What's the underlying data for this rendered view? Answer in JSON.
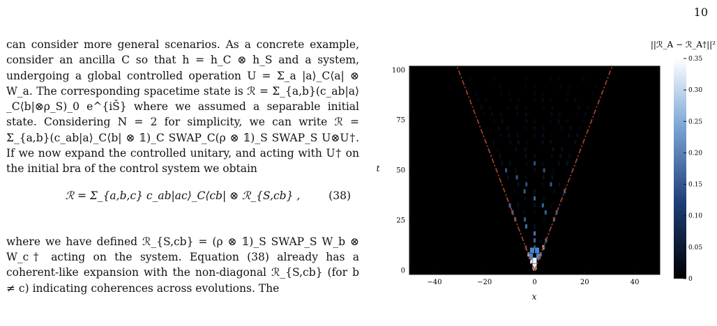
{
  "page_number": "10",
  "paragraph1": "can consider more general scenarios. As a concrete example, consider an ancilla C so that h = h_C ⊗ h_S and a system, undergoing a global controlled operation U = Σ_a |a⟩_C⟨a| ⊗ W_a. The corresponding spacetime state is ℛ = Σ_{a,b}(c_ab|a⟩_C⟨b|⊗ρ_S)_0 e^{iŠ} where we assumed a separable initial state. Considering N = 2 for simplicity, we can write ℛ = Σ_{a,b}(c_ab|a⟩_C⟨b| ⊗ 𝟙)_C SWAP_C(ρ ⊗ 𝟙)_S SWAP_S U⊗U†. If we now expand the controlled unitary, and acting with U† on the initial bra of the control system we obtain",
  "equation": "ℛ = Σ_{a,b,c} c_ab|ac⟩_C⟨cb| ⊗ ℛ_{S,cb} ,",
  "equation_number": "(38)",
  "paragraph2": "where we have defined ℛ_{S,cb} = (ρ ⊗ 𝟙)_S SWAP_S W_b ⊗ W_c† acting on the system. Equation (38) already has a coherent-like expansion with the non-diagonal ℛ_{S,cb} (for b ≠ c) indicating coherences across evolutions. The",
  "figure": {
    "colorbar_title": "||ℛ_A − ℛ_A†||²",
    "colors": {
      "background": "#000000",
      "light_cone": "#b0442a",
      "bright": "#e8f2ff",
      "mid": "#4a86cc",
      "dark": "#0b1c3a"
    },
    "chart_data": {
      "type": "heatmap",
      "xlabel": "x",
      "ylabel": "t",
      "xlim": [
        -50,
        50
      ],
      "ylim": [
        -2,
        102
      ],
      "xticks": [
        -40,
        -20,
        0,
        20,
        40
      ],
      "yticks": [
        0,
        25,
        50,
        75,
        100
      ],
      "colorbar": {
        "range": [
          0,
          0.35
        ],
        "ticks": [
          0,
          0.05,
          0.1,
          0.15,
          0.2,
          0.25,
          0.3,
          0.35
        ],
        "colormap": "black-blue-white"
      },
      "light_cone": {
        "style": "dash-dot",
        "apex": [
          0,
          0
        ],
        "edges": [
          [
            -31,
            102
          ],
          [
            31,
            102
          ]
        ]
      }
    }
  }
}
